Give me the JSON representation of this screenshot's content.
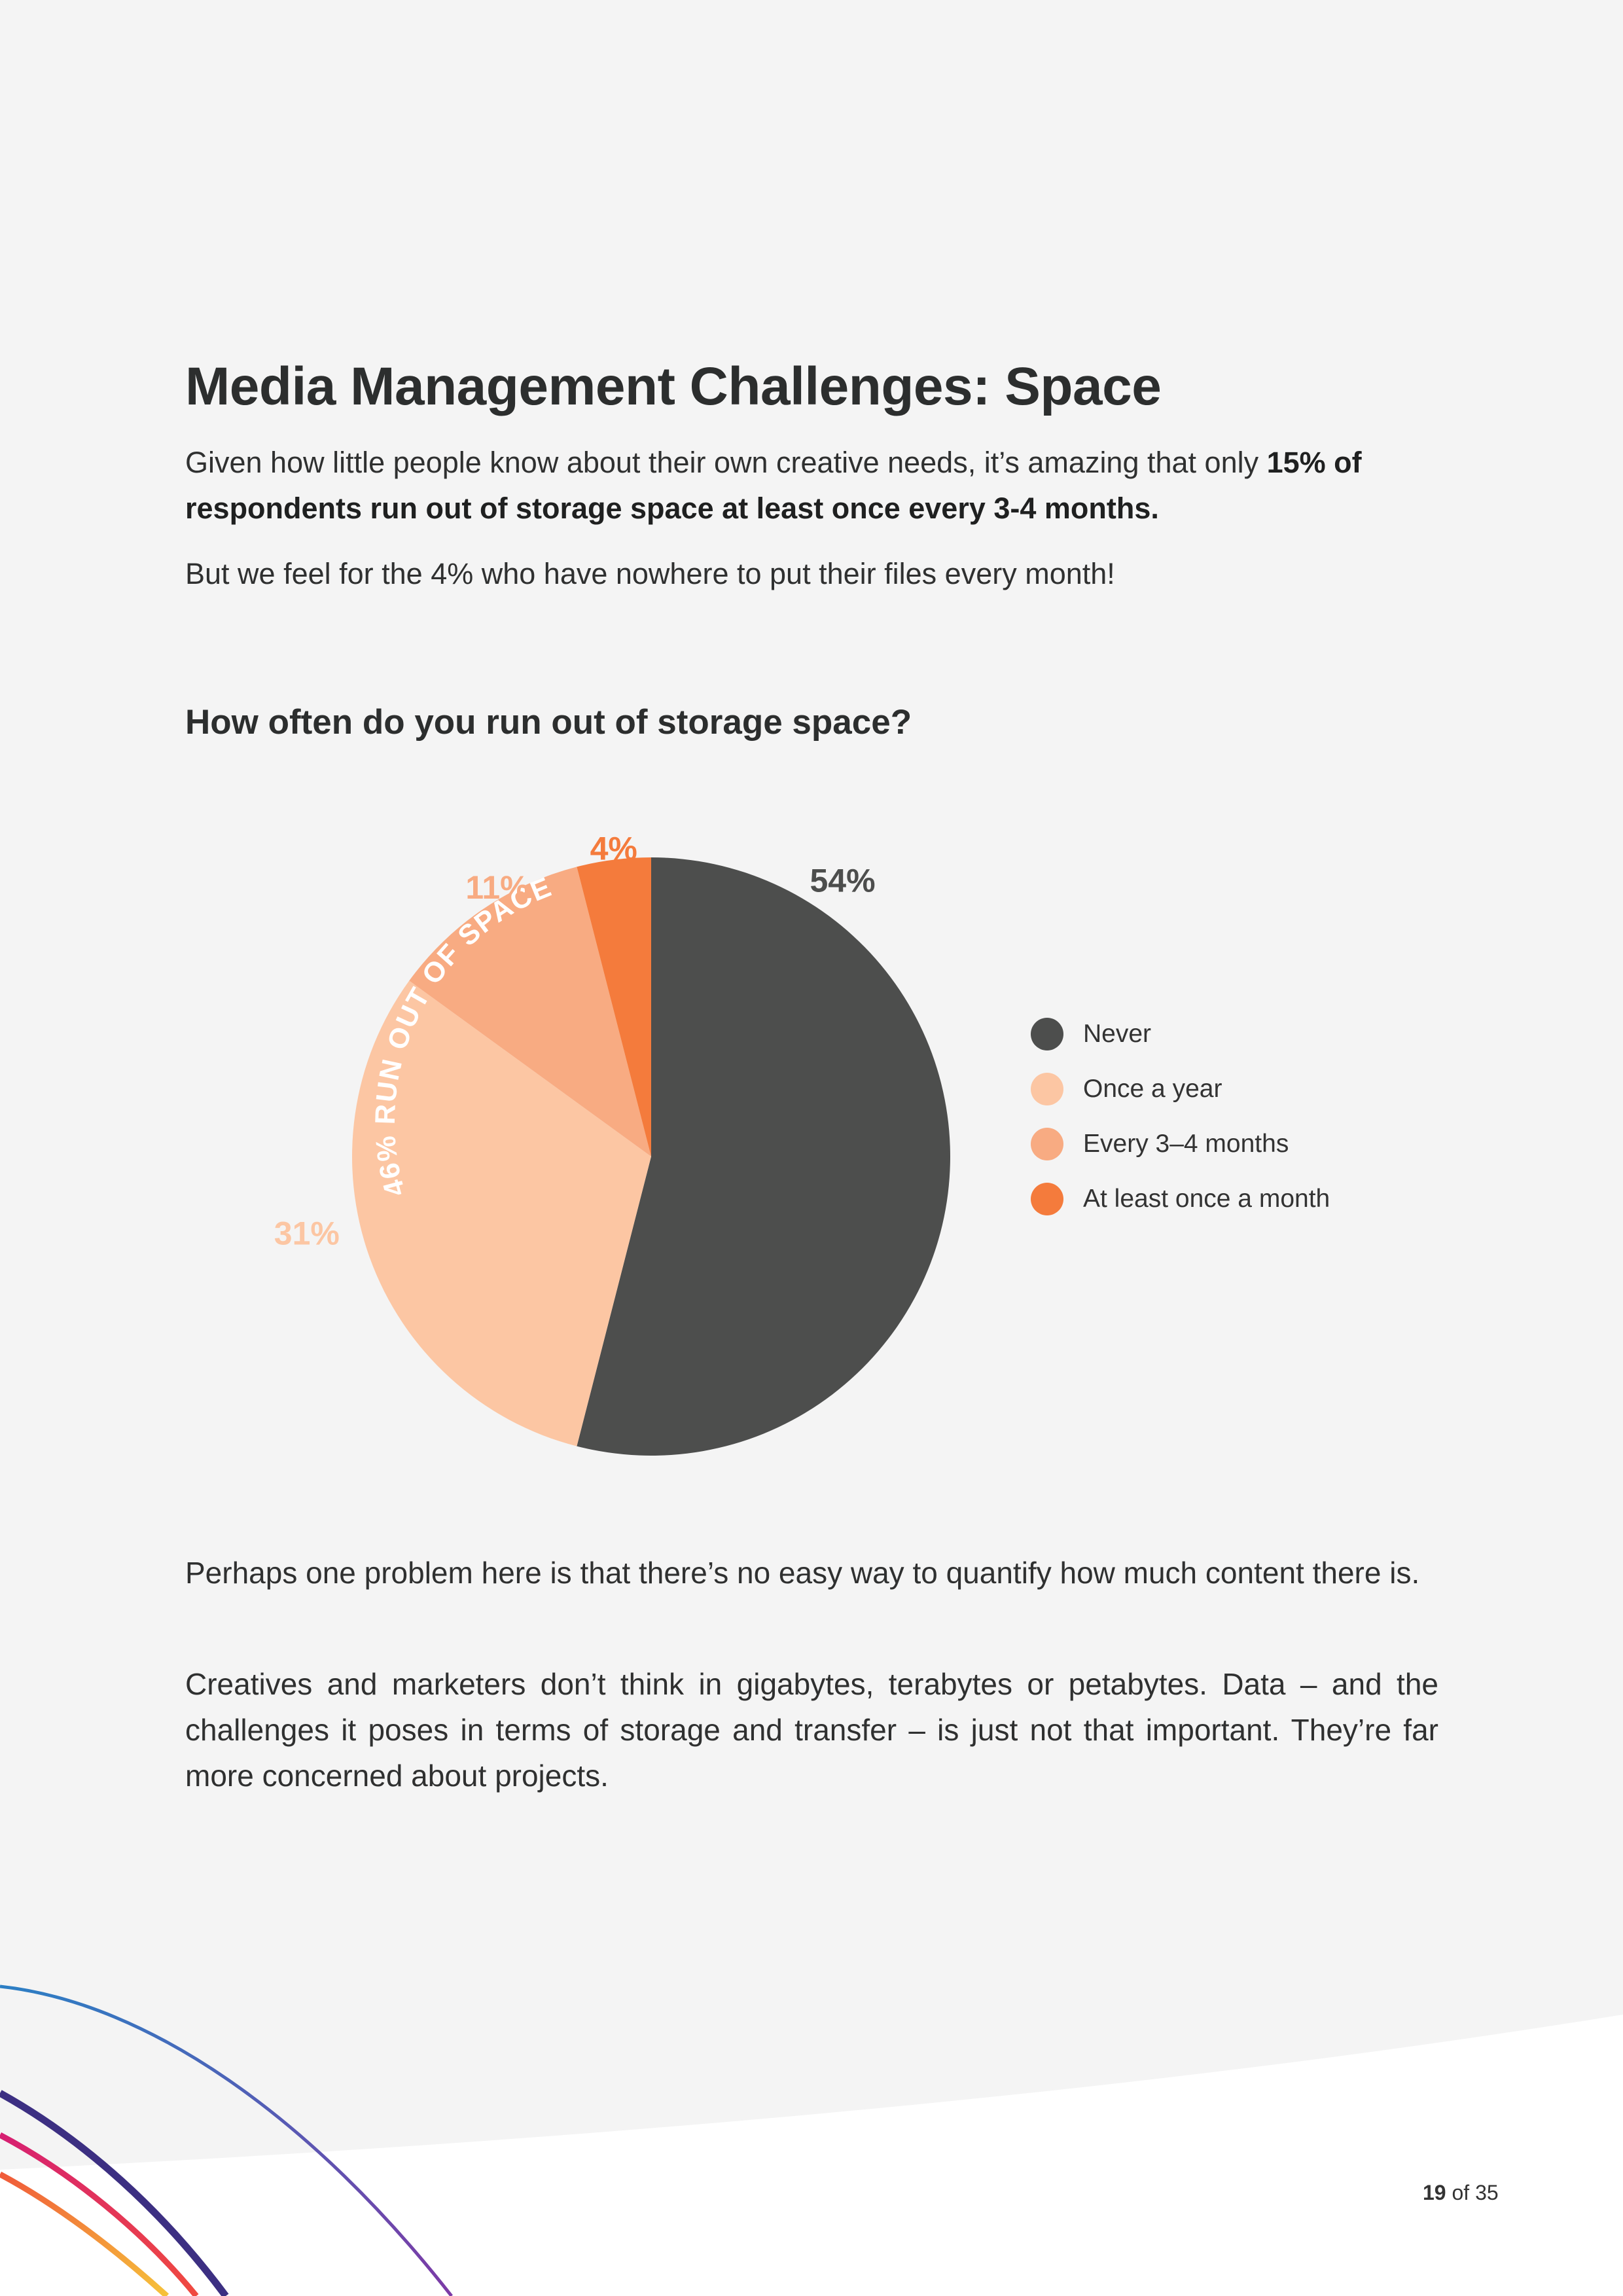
{
  "page": {
    "title": "Media Management Challenges: Space",
    "intro_regular": "Given how little people know about their own creative needs, it’s amazing that only ",
    "intro_bold": "15% of respondents run out of storage space at least once every 3-4 months.",
    "intro2": "But we feel for the 4% who have nowhere to put their files every month!",
    "body1": "Perhaps one problem here is that there’s no easy way to quantify how much content there is.",
    "body2": "Creatives and marketers don’t think in gigabytes, terabytes or petabytes. Data – and the challenges it poses in terms of storage and transfer – is just not that important. They’re far more concerned about projects.",
    "page_current": "19",
    "page_of": "of 35"
  },
  "chart_data": {
    "type": "pie",
    "title": "How often do you run out of storage space?",
    "categories": [
      "Never",
      "Once a year",
      "Every 3–4 months",
      "At least once a month"
    ],
    "values": [
      54,
      31,
      11,
      4
    ],
    "value_labels": [
      "54%",
      "31%",
      "11%",
      "4%"
    ],
    "colors": [
      "#4d4e4d",
      "#fcc6a3",
      "#f8ab82",
      "#f47b3c"
    ],
    "annotation": "46% RUN OUT OF SPACE",
    "legend_position": "right"
  },
  "colors": {
    "background": "#f4f4f4",
    "title_text": "#2c2e2e",
    "body_text": "#2f3030"
  }
}
